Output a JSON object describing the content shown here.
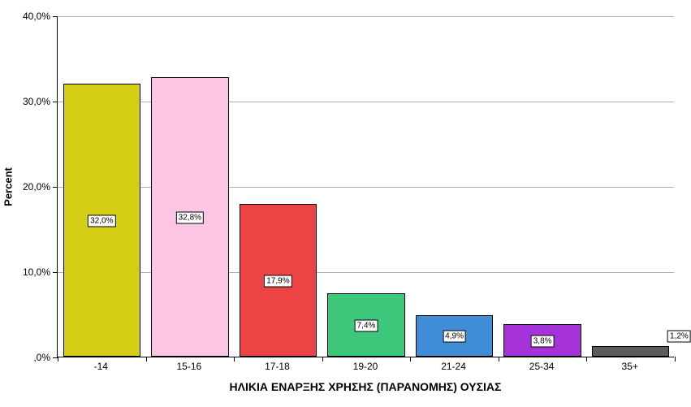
{
  "chart": {
    "type": "bar",
    "y_axis_title": "Percent",
    "x_axis_title": "ΗΛΙΚΙΑ ΕΝΑΡΞΗΣ ΧΡΗΣΗΣ (ΠΑΡΑΝΟΜΗΣ) ΟΥΣΙΑΣ",
    "title_fontsize": 14,
    "label_fontsize": 12,
    "datalabel_fontsize": 10,
    "background_color": "#ffffff",
    "grid_color": "#aeaeae",
    "axis_line_color": "#000000",
    "bar_border_color": "#000000",
    "label_box_bg": "#ffffff",
    "label_box_border": "#000000",
    "ylim": [
      0,
      40
    ],
    "ytick_step": 10,
    "yticks": [
      {
        "value": 0,
        "label": ",0%"
      },
      {
        "value": 10,
        "label": "10,0%"
      },
      {
        "value": 20,
        "label": "20,0%"
      },
      {
        "value": 30,
        "label": "30,0%"
      },
      {
        "value": 40,
        "label": "40,0%"
      }
    ],
    "bar_width_ratio": 0.88,
    "categories": [
      "-14",
      "15-16",
      "17-18",
      "19-20",
      "21-24",
      "25-34",
      "35+"
    ],
    "values": [
      32.0,
      32.8,
      17.9,
      7.4,
      4.9,
      3.8,
      1.2
    ],
    "value_labels": [
      "32,0%",
      "32,8%",
      "17,9%",
      "7,4%",
      "4,9%",
      "3,8%",
      "1,2%"
    ],
    "bar_colors": [
      "#d6ce15",
      "#fcc5e3",
      "#ed4344",
      "#3cc77b",
      "#3e8dd6",
      "#a633d9",
      "#5a5e57"
    ],
    "label_positions_y": [
      16.0,
      16.4,
      8.95,
      3.7,
      2.45,
      1.9,
      2.5
    ],
    "label_positions_x": [
      0,
      1,
      2,
      3,
      4,
      5,
      6.55
    ]
  }
}
